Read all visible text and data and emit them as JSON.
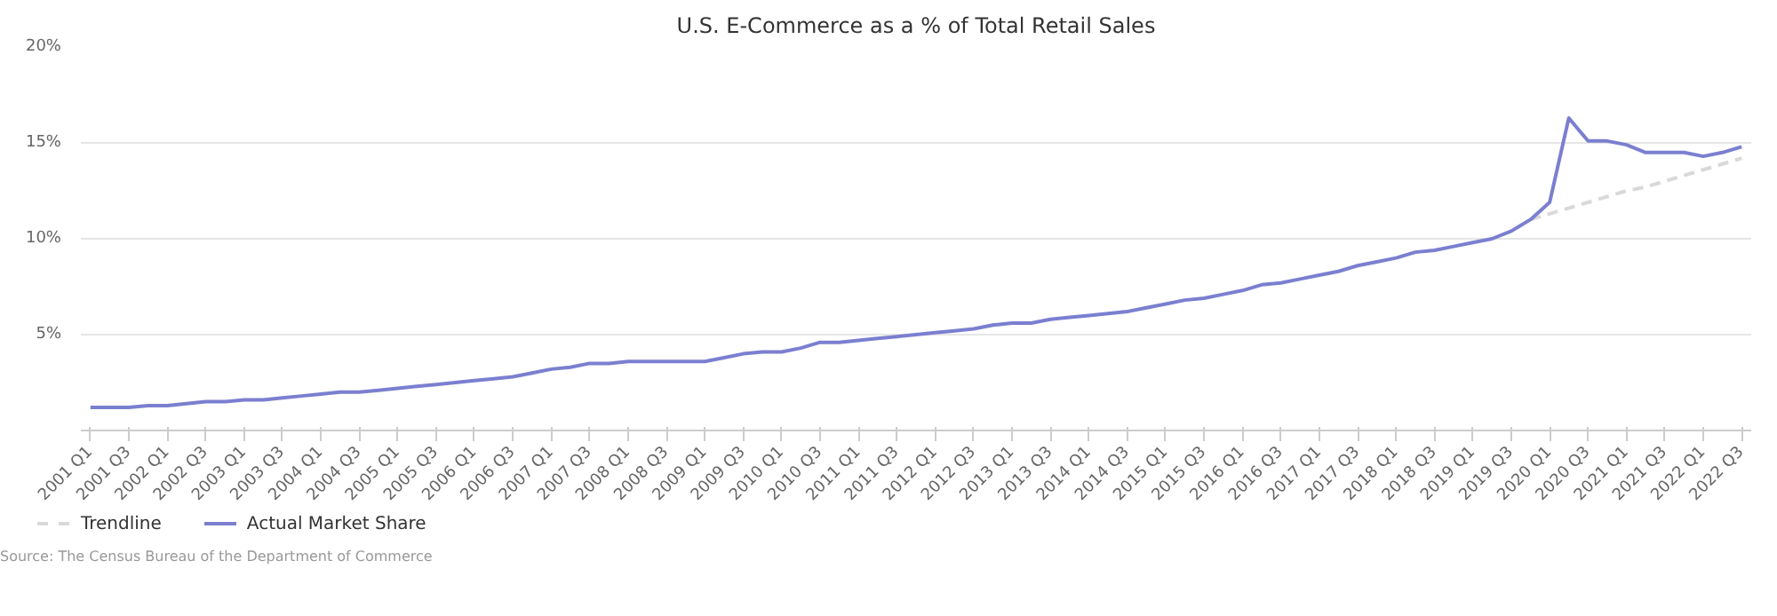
{
  "chart_data": {
    "type": "line",
    "title": "U.S. E-Commerce as a % of Total Retail Sales",
    "categories": [
      "2001 Q1",
      null,
      "2001 Q3",
      null,
      "2002 Q1",
      null,
      "2002 Q3",
      null,
      "2003 Q1",
      null,
      "2003 Q3",
      null,
      "2004 Q1",
      null,
      "2004 Q3",
      null,
      "2005 Q1",
      null,
      "2005 Q3",
      null,
      "2006 Q1",
      null,
      "2006 Q3",
      null,
      "2007 Q1",
      null,
      "2007 Q3",
      null,
      "2008 Q1",
      null,
      "2008 Q3",
      null,
      "2009 Q1",
      null,
      "2009 Q3",
      null,
      "2010 Q1",
      null,
      "2010 Q3",
      null,
      "2011 Q1",
      null,
      "2011 Q3",
      null,
      "2012 Q1",
      null,
      "2012 Q3",
      null,
      "2013 Q1",
      null,
      "2013 Q3",
      null,
      "2014 Q1",
      null,
      "2014 Q3",
      null,
      "2015 Q1",
      null,
      "2015 Q3",
      null,
      "2016 Q1",
      null,
      "2016 Q3",
      null,
      "2017 Q1",
      null,
      "2017 Q3",
      null,
      "2018 Q1",
      null,
      "2018 Q3",
      null,
      "2019 Q1",
      null,
      "2019 Q3",
      null,
      "2020 Q1",
      null,
      "2020 Q3",
      null,
      "2021 Q1",
      null,
      "2021 Q3",
      null,
      "2022 Q1",
      null,
      "2022 Q3"
    ],
    "series": [
      {
        "name": "Trendline",
        "color": "#d9d9d9",
        "line_style": "dashed",
        "values": [
          null,
          null,
          null,
          null,
          null,
          null,
          null,
          null,
          null,
          null,
          null,
          null,
          null,
          null,
          null,
          null,
          null,
          null,
          null,
          null,
          null,
          null,
          null,
          null,
          null,
          null,
          null,
          null,
          null,
          null,
          null,
          null,
          null,
          null,
          null,
          null,
          null,
          null,
          null,
          null,
          null,
          null,
          null,
          null,
          null,
          null,
          null,
          null,
          null,
          null,
          null,
          null,
          null,
          null,
          null,
          null,
          null,
          null,
          null,
          null,
          null,
          null,
          null,
          null,
          null,
          null,
          null,
          null,
          null,
          null,
          null,
          null,
          null,
          null,
          null,
          11.0,
          11.3,
          11.6,
          11.9,
          12.2,
          12.5,
          12.7,
          13.0,
          13.3,
          13.6,
          13.9,
          14.2
        ]
      },
      {
        "name": "Actual Market Share",
        "color": "#7b7fd0",
        "line_style": "solid",
        "values": [
          1.2,
          1.2,
          1.2,
          1.3,
          1.3,
          1.4,
          1.5,
          1.5,
          1.6,
          1.6,
          1.7,
          1.8,
          1.9,
          2.0,
          2.0,
          2.1,
          2.2,
          2.3,
          2.4,
          2.5,
          2.6,
          2.7,
          2.8,
          3.0,
          3.2,
          3.3,
          3.5,
          3.5,
          3.6,
          3.6,
          3.6,
          3.6,
          3.6,
          3.8,
          4.0,
          4.1,
          4.1,
          4.3,
          4.6,
          4.6,
          4.7,
          4.8,
          4.9,
          5.0,
          5.1,
          5.2,
          5.3,
          5.5,
          5.6,
          5.6,
          5.8,
          5.9,
          6.0,
          6.1,
          6.2,
          6.4,
          6.6,
          6.8,
          6.9,
          7.1,
          7.3,
          7.6,
          7.7,
          7.9,
          8.1,
          8.3,
          8.6,
          8.8,
          9.0,
          9.3,
          9.4,
          9.6,
          9.8,
          10.0,
          10.4,
          11.0,
          11.9,
          16.3,
          15.1,
          15.1,
          14.9,
          14.5,
          14.5,
          14.5,
          14.3,
          14.5,
          14.8
        ]
      }
    ],
    "ylim": [
      0,
      20
    ],
    "yticks": [
      {
        "value": 5,
        "label": "5%"
      },
      {
        "value": 10,
        "label": "10%"
      },
      {
        "value": 15,
        "label": "15%"
      },
      {
        "value": 20,
        "label": "20%"
      }
    ],
    "grid": "y",
    "legend": "bottom",
    "marker": "none",
    "annotations": [
      "Source: The Census Bureau of the Department of Commerce"
    ]
  }
}
